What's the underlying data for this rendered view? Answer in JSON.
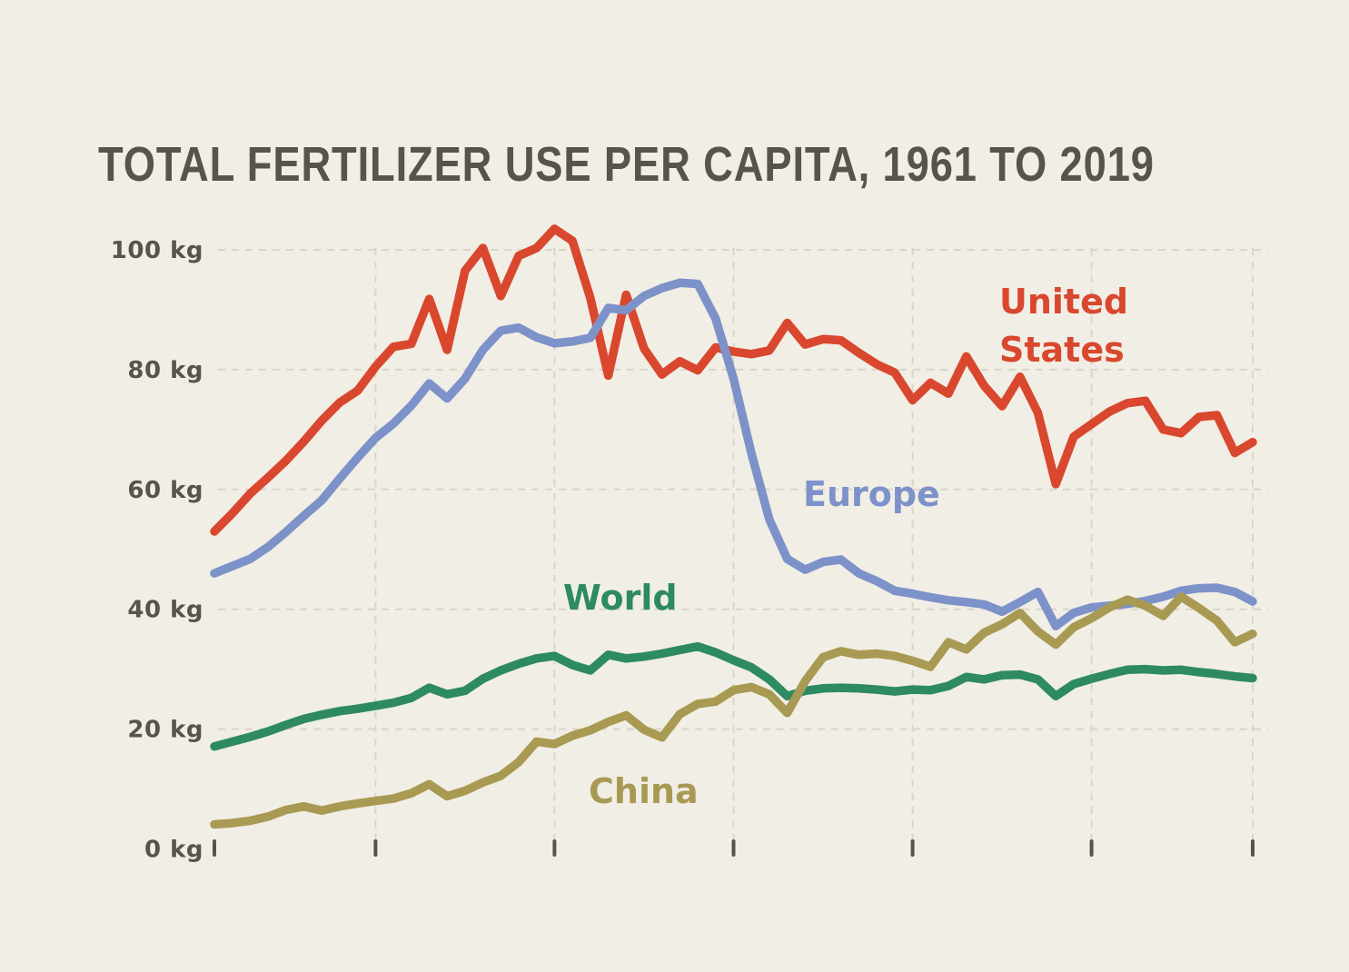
{
  "title": "TOTAL FERTILIZER USE PER CAPITA, 1961 TO 2019",
  "chart_data": {
    "type": "line",
    "title": "TOTAL FERTILIZER USE PER CAPITA, 1961 TO 2019",
    "unit": "kg",
    "background": "#f1eee5",
    "grid": {
      "horizontal": [
        20,
        40,
        60,
        80,
        100
      ],
      "vertical": [
        1970,
        1980,
        1990,
        2000,
        2010,
        2019
      ]
    },
    "x_ticks": [
      1961,
      1970,
      1980,
      1990,
      2000,
      2010,
      2019
    ],
    "y_ticks": [
      0,
      20,
      40,
      60,
      80,
      100
    ],
    "y_tick_suffix": " kg",
    "xlim": [
      1961,
      2019
    ],
    "ylim": [
      0,
      105
    ],
    "legend_position": "inline-labels",
    "x": [
      1961,
      1962,
      1963,
      1964,
      1965,
      1966,
      1967,
      1968,
      1969,
      1970,
      1971,
      1972,
      1973,
      1974,
      1975,
      1976,
      1977,
      1978,
      1979,
      1980,
      1981,
      1982,
      1983,
      1984,
      1985,
      1986,
      1987,
      1988,
      1989,
      1990,
      1991,
      1992,
      1993,
      1994,
      1995,
      1996,
      1997,
      1998,
      1999,
      2000,
      2001,
      2002,
      2003,
      2004,
      2005,
      2006,
      2007,
      2008,
      2009,
      2010,
      2011,
      2012,
      2013,
      2014,
      2015,
      2016,
      2017,
      2018,
      2019
    ],
    "series": [
      {
        "id": "world",
        "name": "World",
        "label": "World",
        "color": "#2d8a63",
        "values": [
          17.1,
          17.9,
          18.7,
          19.6,
          20.7,
          21.7,
          22.4,
          23.0,
          23.4,
          23.9,
          24.4,
          25.2,
          26.9,
          25.8,
          26.4,
          28.4,
          29.8,
          30.9,
          31.8,
          32.2,
          30.7,
          29.8,
          32.4,
          31.8,
          32.1,
          32.6,
          33.2,
          33.8,
          32.8,
          31.5,
          30.3,
          28.3,
          25.5,
          26.4,
          26.8,
          26.9,
          26.8,
          26.6,
          26.3,
          26.6,
          26.5,
          27.2,
          28.7,
          28.3,
          29.0,
          29.1,
          28.3,
          25.5,
          27.5,
          28.4,
          29.2,
          29.9,
          30.0,
          29.8,
          29.9,
          29.5,
          29.2,
          28.8,
          28.5
        ]
      },
      {
        "id": "united-states",
        "name": "United States",
        "label": "United\nStates",
        "color": "#d9472e",
        "values": [
          53.0,
          56.0,
          59.3,
          62.0,
          64.8,
          68.0,
          71.5,
          74.5,
          76.5,
          80.5,
          83.8,
          84.3,
          91.8,
          83.3,
          96.5,
          100.3,
          92.3,
          99.0,
          100.3,
          103.5,
          101.5,
          92.0,
          79.0,
          92.5,
          83.5,
          79.2,
          81.4,
          79.9,
          83.7,
          83.0,
          82.6,
          83.2,
          87.8,
          84.2,
          85.1,
          84.9,
          82.8,
          80.9,
          79.5,
          74.9,
          77.8,
          76.0,
          82.2,
          77.3,
          73.9,
          78.8,
          72.8,
          60.9,
          68.8,
          70.9,
          73.0,
          74.4,
          74.8,
          70.0,
          69.4,
          72.1,
          72.4,
          66.1,
          67.9
        ]
      },
      {
        "id": "europe",
        "name": "Europe",
        "label": "Europe",
        "color": "#7d92c9",
        "values": [
          46.0,
          47.2,
          48.4,
          50.4,
          52.9,
          55.6,
          58.2,
          61.8,
          65.3,
          68.6,
          71.0,
          74.0,
          77.7,
          75.2,
          78.5,
          83.3,
          86.5,
          87.0,
          85.4,
          84.4,
          84.7,
          85.3,
          90.3,
          89.9,
          92.3,
          93.6,
          94.5,
          94.3,
          88.5,
          78.5,
          66.0,
          55.0,
          48.4,
          46.6,
          47.9,
          48.3,
          46.0,
          44.7,
          43.1,
          42.6,
          42.0,
          41.5,
          41.2,
          40.8,
          39.6,
          41.2,
          42.9,
          37.2,
          39.4,
          40.3,
          40.6,
          40.9,
          41.4,
          42.1,
          43.1,
          43.5,
          43.6,
          42.9,
          41.3
        ]
      },
      {
        "id": "china",
        "name": "China",
        "label": "China",
        "color": "#a89a52",
        "values": [
          4.1,
          4.3,
          4.7,
          5.4,
          6.5,
          7.1,
          6.4,
          7.1,
          7.6,
          8.0,
          8.4,
          9.3,
          10.8,
          8.8,
          9.7,
          11.1,
          12.2,
          14.5,
          17.9,
          17.5,
          18.9,
          19.8,
          21.2,
          22.3,
          19.9,
          18.6,
          22.5,
          24.2,
          24.6,
          26.5,
          27.0,
          25.8,
          22.7,
          28.0,
          32.0,
          33.0,
          32.4,
          32.6,
          32.2,
          31.4,
          30.4,
          34.5,
          33.3,
          36.1,
          37.5,
          39.4,
          36.3,
          34.1,
          37.0,
          38.5,
          40.3,
          41.6,
          40.6,
          38.9,
          42.1,
          40.2,
          38.1,
          34.5,
          35.9
        ]
      }
    ]
  }
}
